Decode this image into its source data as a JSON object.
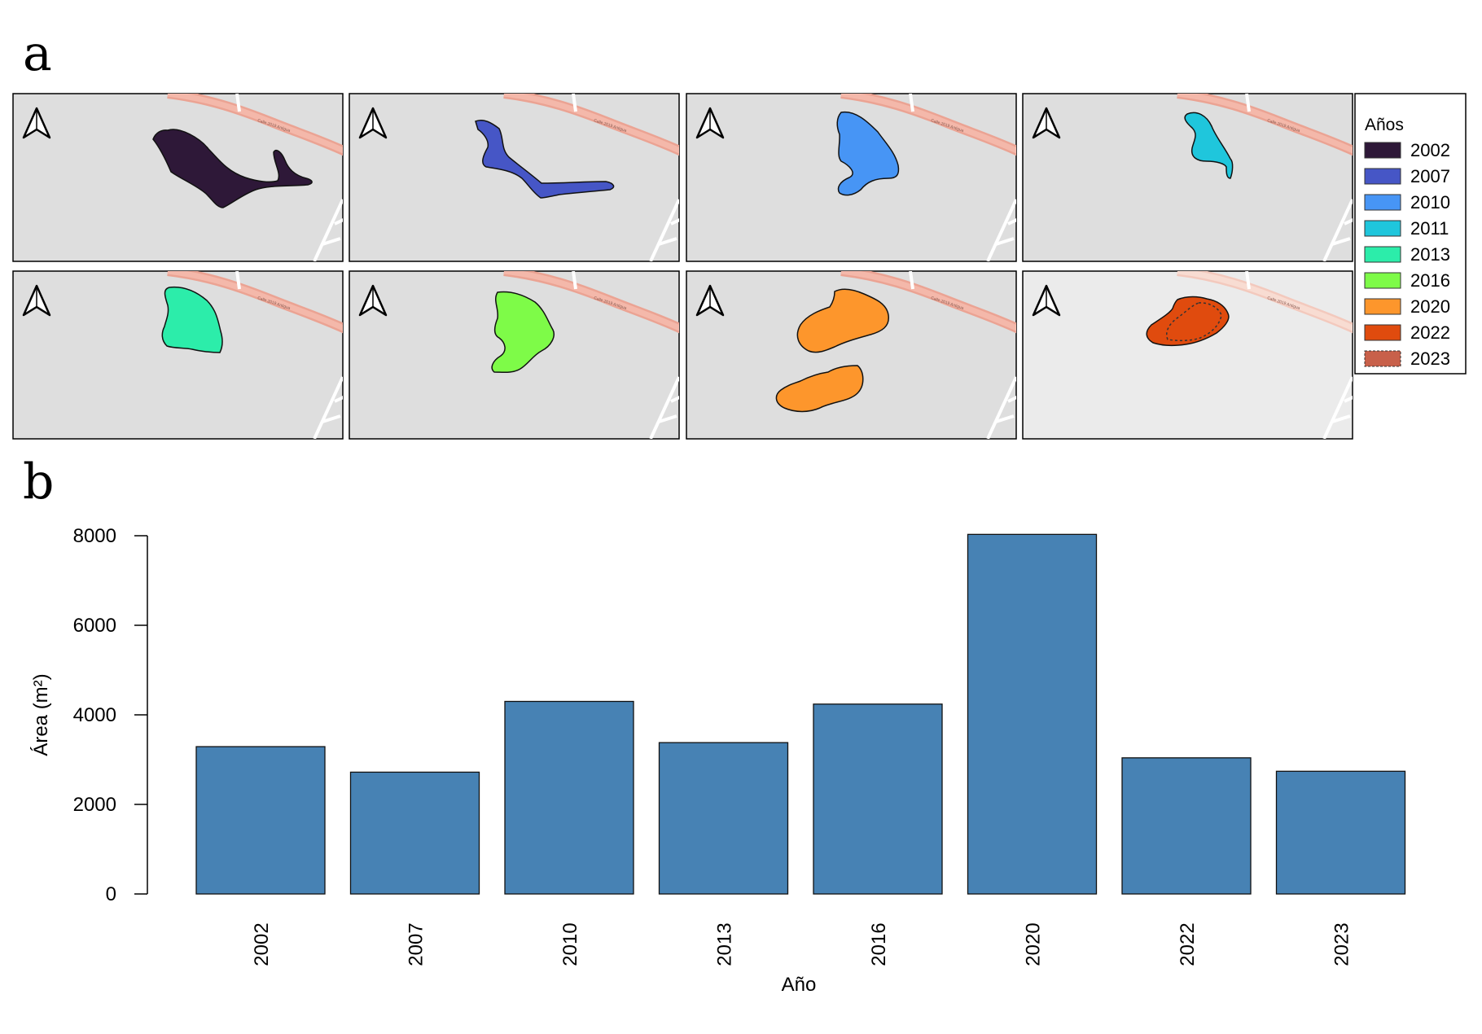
{
  "figure": {
    "panel_a_label": "a",
    "panel_b_label": "b"
  },
  "maps": {
    "road_label": "Calle 2019 Antigua",
    "panels": [
      {
        "year": "2002",
        "color": "#2e1838"
      },
      {
        "year": "2007",
        "color": "#4656c6"
      },
      {
        "year": "2010",
        "color": "#4795f5"
      },
      {
        "year": "2011",
        "color": "#1fc6dc"
      },
      {
        "year": "2013",
        "color": "#2cedaa"
      },
      {
        "year": "2016",
        "color": "#7efb48"
      },
      {
        "year": "2020",
        "color": "#fd962c"
      },
      {
        "year": "2022",
        "color": "#e04b0e"
      }
    ]
  },
  "legend": {
    "title": "Años",
    "entries": [
      {
        "label": "2002",
        "color": "#2e1838"
      },
      {
        "label": "2007",
        "color": "#4656c6"
      },
      {
        "label": "2010",
        "color": "#4795f5"
      },
      {
        "label": "2011",
        "color": "#1fc6dc"
      },
      {
        "label": "2013",
        "color": "#2cedaa"
      },
      {
        "label": "2016",
        "color": "#7efb48"
      },
      {
        "label": "2020",
        "color": "#fd962c"
      },
      {
        "label": "2022",
        "color": "#e04b0e"
      },
      {
        "label": "2023",
        "color": "#c8604a",
        "dashed": true
      }
    ]
  },
  "chart_data": {
    "type": "bar",
    "title": "",
    "xlabel": "Año",
    "ylabel": "Área (m²)",
    "categories": [
      "2002",
      "2007",
      "2010",
      "2013",
      "2016",
      "2020",
      "2022",
      "2023"
    ],
    "values": [
      3290,
      2720,
      4300,
      3380,
      4240,
      8030,
      3040,
      2740
    ],
    "ylim": [
      0,
      8000
    ],
    "yticks": [
      0,
      2000,
      4000,
      6000,
      8000
    ],
    "bar_color": "#4782b4",
    "grid": false
  }
}
